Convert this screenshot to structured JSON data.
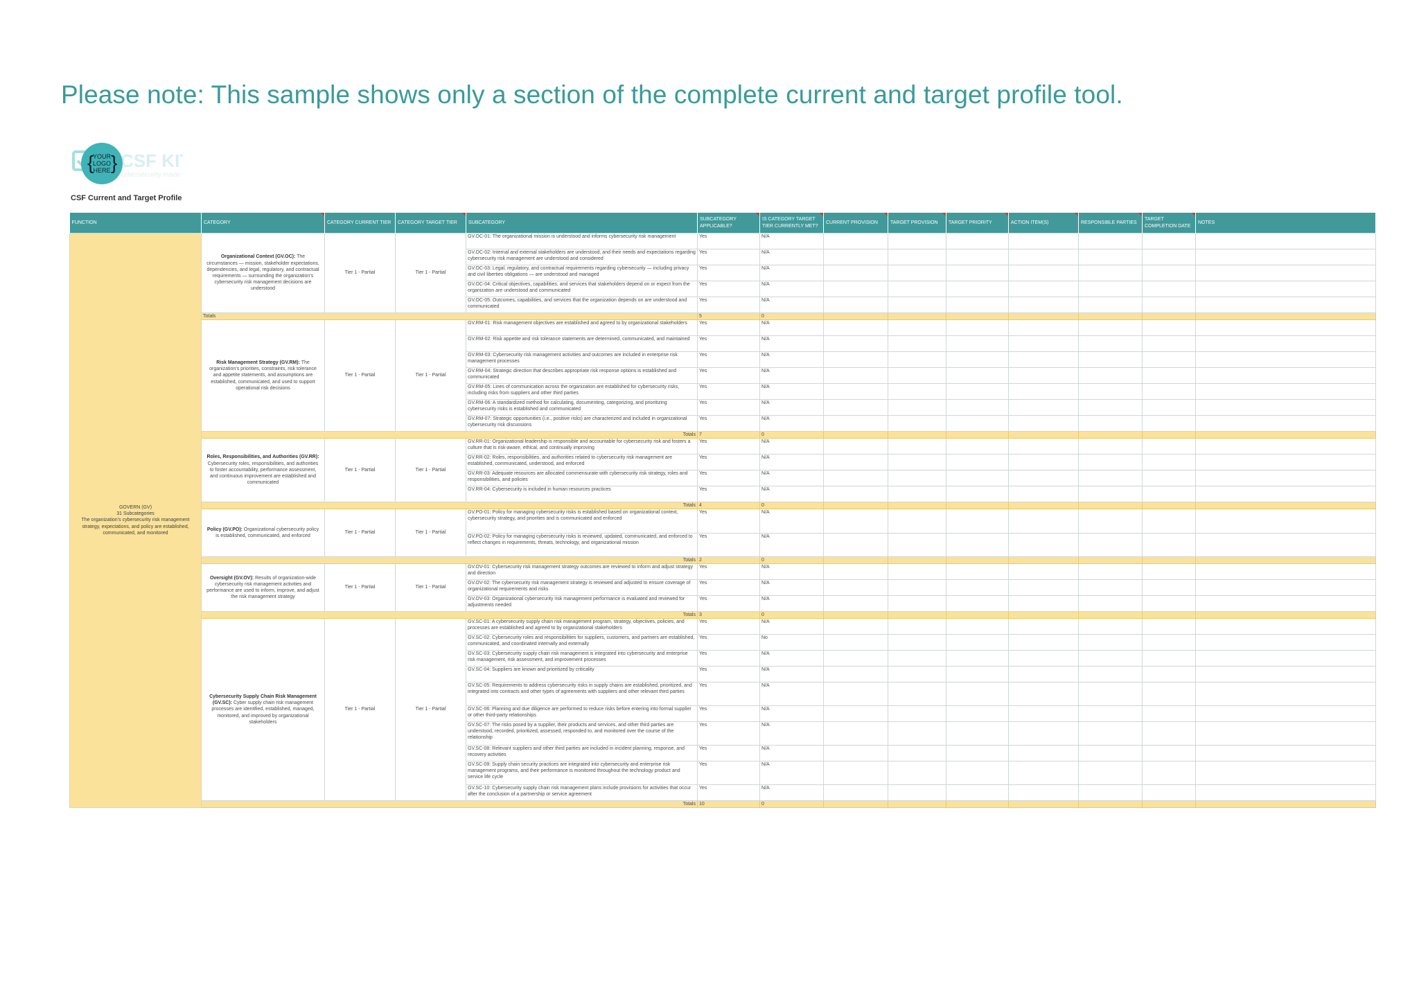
{
  "note": "Please note: This sample shows only a section of the complete current and target profile tool.",
  "logo": {
    "line1": "YOUR",
    "line2": "LOGO",
    "line3": "HERE",
    "brand": "CSF KIT",
    "tagline": "cybersecurity made easy",
    "accent": "#3fb3b6"
  },
  "profile_title": "CSF Current and Target Profile",
  "headers": [
    "FUNCTION",
    "CATEGORY",
    "CATEGORY CURRENT TIER",
    "CATEGORY TARGET TIER",
    "SUBCATEGORY",
    "SUBCATEGORY APPLICABLE?",
    "IS CATEGORY TARGET TIER CURRENTLY MET?",
    "CURRENT PROVISION",
    "TARGET PROVISION",
    "TARGET PRIORITY",
    "ACTION ITEM(S)",
    "RESPONSIBLE PARTIES",
    "TARGET COMPLETION DATE",
    "NOTES"
  ],
  "function": {
    "name": "GOVERN (GV)",
    "count": "31 Subcategories",
    "desc": "The organization’s cybersecurity risk management strategy, expectations, and policy are established, communicated, and monitored"
  },
  "totals_label": "Totals",
  "groups": [
    {
      "cat_name": "Organizational Context (GV.OC):",
      "cat_desc": " The circumstances — mission, stakeholder expectations, dependencies, and legal, regulatory, and contractual requirements — surrounding the organization’s cybersecurity risk management decisions are understood",
      "current_tier": "Tier 1 - Partial",
      "target_tier": "Tier 1 - Partial",
      "subs": [
        {
          "text": "GV.OC-01: The organizational mission is understood and informs cybersecurity risk management",
          "app": "Yes",
          "met": "N/A"
        },
        {
          "text": "GV.OC-02: Internal and external stakeholders are understood, and their needs and expectations regarding cybersecurity risk management are understood and considered",
          "app": "Yes",
          "met": "N/A"
        },
        {
          "text": "GV.OC-03: Legal, regulatory, and contractual requirements regarding cybersecurity — including privacy and civil liberties obligations — are understood and managed",
          "app": "Yes",
          "met": "N/A"
        },
        {
          "text": "GV.OC-04: Critical objectives, capabilities, and services that stakeholders depend on or expect from the organization are understood and communicated",
          "app": "Yes",
          "met": "N/A"
        },
        {
          "text": "GV.OC-05: Outcomes, capabilities, and services that the organization depends on are understood and communicated",
          "app": "Yes",
          "met": "N/A"
        }
      ],
      "total_app": "5",
      "total_met": "0"
    },
    {
      "cat_name": "Risk Management Strategy (GV.RM):",
      "cat_desc": " The organization’s priorities, constraints, risk tolerance and appetite statements, and assumptions are established, communicated, and used to support operational risk decisions",
      "current_tier": "Tier 1 - Partial",
      "target_tier": "Tier 1 - Partial",
      "subs": [
        {
          "text": "GV.RM-01: Risk management objectives are established and agreed to by organizational stakeholders",
          "app": "Yes",
          "met": "N/A"
        },
        {
          "text": "GV.RM-02: Risk appetite and risk tolerance statements are determined, communicated, and maintained",
          "app": "Yes",
          "met": "N/A"
        },
        {
          "text": "GV.RM-03: Cybersecurity risk management activities and outcomes are included in enterprise risk management processes",
          "app": "Yes",
          "met": "N/A"
        },
        {
          "text": "GV.RM-04: Strategic direction that describes appropriate risk response options is established and communicated",
          "app": "Yes",
          "met": "N/A"
        },
        {
          "text": "GV.RM-05: Lines of communication across the organization are established for cybersecurity risks, including risks from suppliers and other third parties",
          "app": "Yes",
          "met": "N/A"
        },
        {
          "text": "GV.RM-06: A standardized method for calculating, documenting, categorizing, and prioritizing cybersecurity risks is established and communicated",
          "app": "Yes",
          "met": "N/A"
        },
        {
          "text": "GV.RM-07: Strategic opportunities (i.e., positive risks) are characterized and included in organizational cybersecurity risk discussions",
          "app": "Yes",
          "met": "N/A"
        }
      ],
      "total_app": "7",
      "total_met": "0"
    },
    {
      "cat_name": "Roles, Responsibilities, and Authorities (GV.RR):",
      "cat_desc": " Cybersecurity roles, responsibilities, and authorities to foster accountability, performance assessment, and continuous improvement are established and communicated",
      "current_tier": "Tier 1 - Partial",
      "target_tier": "Tier 1 - Partial",
      "subs": [
        {
          "text": "GV.RR-01: Organizational leadership is responsible and accountable for cybersecurity risk and fosters a culture that is risk-aware, ethical, and continually improving",
          "app": "Yes",
          "met": "N/A"
        },
        {
          "text": "GV.RR-02: Roles, responsibilities, and authorities related to cybersecurity risk management are established, communicated, understood, and enforced",
          "app": "Yes",
          "met": "N/A"
        },
        {
          "text": "GV.RR-03: Adequate resources are allocated commensurate with cybersecurity risk strategy, roles and responsibilities, and policies",
          "app": "Yes",
          "met": "N/A"
        },
        {
          "text": "GV.RR-04: Cybersecurity is included in human resources practices",
          "app": "Yes",
          "met": "N/A"
        }
      ],
      "total_app": "4",
      "total_met": "0"
    },
    {
      "cat_name": "Policy (GV.PO):",
      "cat_desc": " Organizational cybersecurity policy is established, communicated, and enforced",
      "current_tier": "Tier 1 - Partial",
      "target_tier": "Tier 1 - Partial",
      "subs": [
        {
          "text": "GV.PO-01: Policy for managing cybersecurity risks is established based on organizational context, cybersecurity strategy, and priorities and is communicated and enforced",
          "app": "Yes",
          "met": "N/A"
        },
        {
          "text": "GV.PO-02: Policy for managing cybersecurity risks is reviewed, updated, communicated, and enforced to reflect changes in requirements, threats, technology, and organizational mission",
          "app": "Yes",
          "met": "N/A"
        }
      ],
      "total_app": "2",
      "total_met": "0"
    },
    {
      "cat_name": "Oversight (GV.OV):",
      "cat_desc": " Results of organization-wide cybersecurity risk management activities and performance are used to inform, improve, and adjust the risk management strategy",
      "current_tier": "Tier 1 - Partial",
      "target_tier": "Tier 1 - Partial",
      "subs": [
        {
          "text": "GV.OV-01: Cybersecurity risk management strategy outcomes are reviewed to inform and adjust strategy and direction",
          "app": "Yes",
          "met": "N/A"
        },
        {
          "text": "GV.OV-02: The cybersecurity risk management strategy is reviewed and adjusted to ensure coverage of organizational requirements and risks",
          "app": "Yes",
          "met": "N/A"
        },
        {
          "text": "GV.OV-03: Organizational cybersecurity risk management performance is evaluated and reviewed for adjustments needed",
          "app": "Yes",
          "met": "N/A"
        }
      ],
      "total_app": "3",
      "total_met": "0"
    },
    {
      "cat_name": "Cybersecurity Supply Chain Risk Management (GV.SC):",
      "cat_desc": " Cyber supply chain risk management processes are identified, established, managed, monitored, and improved by organizational stakeholders",
      "current_tier": "Tier 1 - Partial",
      "target_tier": "Tier 1 - Partial",
      "subs": [
        {
          "text": "GV.SC-01: A cybersecurity supply chain risk management program, strategy, objectives, policies, and processes are established and agreed to by organizational stakeholders",
          "app": "Yes",
          "met": "N/A"
        },
        {
          "text": "GV.SC-02: Cybersecurity roles and responsibilities for suppliers, customers, and partners are established, communicated, and coordinated internally and externally",
          "app": "Yes",
          "met": "No"
        },
        {
          "text": "GV.SC-03: Cybersecurity supply chain risk management is integrated into cybersecurity and enterprise risk management, risk assessment, and improvement processes",
          "app": "Yes",
          "met": "N/A"
        },
        {
          "text": "GV.SC-04: Suppliers are known and prioritized by criticality",
          "app": "Yes",
          "met": "N/A"
        },
        {
          "text": "GV.SC-05: Requirements to address cybersecurity risks in supply chains are established, prioritized, and integrated into contracts and other types of agreements with suppliers and other relevant third parties",
          "app": "Yes",
          "met": "N/A"
        },
        {
          "text": "GV.SC-06: Planning and due diligence are performed to reduce risks before entering into formal supplier or other third-party relationships",
          "app": "Yes",
          "met": "N/A"
        },
        {
          "text": "GV.SC-07: The risks posed by a supplier, their products and services, and other third parties are understood, recorded, prioritized, assessed, responded to, and monitored over the course of the relationship",
          "app": "Yes",
          "met": "N/A"
        },
        {
          "text": "GV.SC-08: Relevant suppliers and other third parties are included in incident planning, response, and recovery activities",
          "app": "Yes",
          "met": "N/A"
        },
        {
          "text": "GV.SC-09: Supply chain security practices are integrated into cybersecurity and enterprise risk management programs, and their performance is monitored throughout the technology product and service life cycle",
          "app": "Yes",
          "met": "N/A"
        },
        {
          "text": "GV.SC-10: Cybersecurity supply chain risk management plans include provisions for activities that occur after the conclusion of a partnership or service agreement",
          "app": "Yes",
          "met": "N/A"
        }
      ],
      "total_app": "10",
      "total_met": "0"
    }
  ]
}
